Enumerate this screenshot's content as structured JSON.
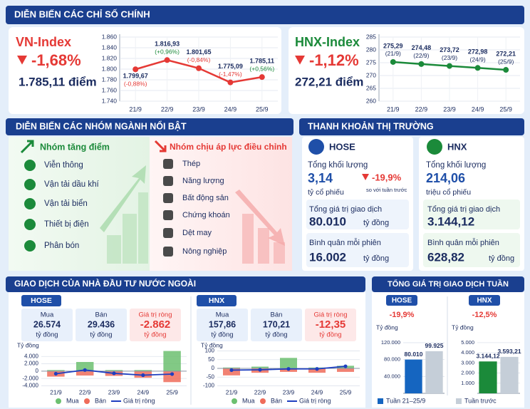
{
  "sections": {
    "indices": "DIỄN BIẾN CÁC CHỈ SỐ CHÍNH",
    "sectors": "DIỄN BIẾN CÁC NHÓM NGÀNH NỔI BẬT",
    "liquidity": "THANH KHOẢN THỊ TRƯỜNG",
    "foreign": "GIAO DỊCH CỦA NHÀ ĐẦU TƯ NƯỚC NGOÀI",
    "weekly": "TỔNG GIÁ TRỊ GIAO DỊCH TUẦN"
  },
  "indices": [
    {
      "name": "VN-Index",
      "change": "-1,68%",
      "close": "1.785,11 điểm"
    },
    {
      "name": "HNX-Index",
      "change": "-1,12%",
      "close": "272,21 điểm"
    }
  ],
  "sectors": {
    "up_title": "Nhóm tăng điểm",
    "up": [
      "Viễn thông",
      "Vận tải dầu khí",
      "Vận tải biển",
      "Thiết bị điện",
      "Phân bón"
    ],
    "down_title": "Nhóm chịu áp lực điều chỉnh",
    "down": [
      "Thép",
      "Năng lượng",
      "Bất động sản",
      "Chứng khoán",
      "Dệt may",
      "Nông nghiệp"
    ]
  },
  "liquidity": [
    {
      "exchange": "HOSE",
      "volume_label": "Tổng khối lượng",
      "volume": "3,14",
      "volume_unit": "tỷ cổ phiếu",
      "change": "-19,9%",
      "change_note": "so với tuần trước",
      "value_label": "Tổng giá trị giao dịch",
      "value": "80.010",
      "value_unit": "tỷ đồng",
      "avg_label": "Bình quân mỗi phiên",
      "avg": "16.002",
      "avg_unit": "tỷ đồng"
    },
    {
      "exchange": "HNX",
      "volume_label": "Tổng khối lượng",
      "volume": "214,06",
      "volume_unit": "triệu cổ phiếu",
      "value_label": "Tổng giá trị giao dịch",
      "value": "3.144,12",
      "avg_label": "Bình quân mỗi phiên",
      "avg": "628,82",
      "avg_unit": "tỷ đồng"
    }
  ],
  "foreign": [
    {
      "exchange": "HOSE",
      "boxes": [
        {
          "label": "Mua",
          "value": "26.574",
          "unit": "tỷ đồng"
        },
        {
          "label": "Bán",
          "value": "29.436",
          "unit": "tỷ đồng"
        },
        {
          "label": "Giá trị ròng",
          "value": "-2.862",
          "unit": "tỷ đồng"
        }
      ]
    },
    {
      "exchange": "HNX",
      "boxes": [
        {
          "label": "Mua",
          "value": "157,86",
          "unit": "tỷ đồng"
        },
        {
          "label": "Bán",
          "value": "170,21",
          "unit": "tỷ đồng"
        },
        {
          "label": "Giá trị ròng",
          "value": "-12,35",
          "unit": "tỷ đồng"
        }
      ]
    }
  ],
  "weekly": [
    {
      "exchange": "HOSE",
      "change": "-19,9%"
    },
    {
      "exchange": "HNX",
      "change": "-12,5%"
    }
  ],
  "chart_data": [
    {
      "type": "line",
      "categories": [
        "21/9",
        "22/9",
        "23/9",
        "24/9",
        "25/9"
      ],
      "values": [
        1799.67,
        1816.93,
        1801.65,
        1775.09,
        1785.11
      ],
      "value_labels": [
        "1.799,67",
        "1.816,93",
        "1.801,65",
        "1.775,09",
        "1.785,11"
      ],
      "annotations": [
        "(-0,88%)",
        "(+0,96%)",
        "(-0,84%)",
        "(-1,47%)",
        "(+0,56%)"
      ],
      "ylim": [
        1740,
        1860
      ],
      "yticks": [
        {
          "value": 1740,
          "label": "1.740"
        },
        {
          "value": 1760,
          "label": "1.760"
        },
        {
          "value": 1780,
          "label": "1.780"
        },
        {
          "value": 1800,
          "label": "1.800"
        },
        {
          "value": 1820,
          "label": "1.820"
        },
        {
          "value": 1840,
          "label": "1.840"
        },
        {
          "value": 1860,
          "label": "1.860"
        }
      ],
      "color": "#e53935",
      "grid": true
    },
    {
      "type": "line",
      "categories": [
        "21/9",
        "22/9",
        "23/9",
        "24/9",
        "25/9"
      ],
      "values": [
        275.29,
        274.48,
        273.72,
        272.98,
        272.21
      ],
      "value_labels": [
        "275,29",
        "274,48",
        "273,72",
        "272,98",
        "272,21"
      ],
      "annotations": [
        "(21/9)",
        "(22/9)",
        "(23/9)",
        "(24/9)",
        "(25/9)"
      ],
      "ylim": [
        260,
        285
      ],
      "yticks": [
        260,
        265,
        270,
        275,
        280,
        285
      ],
      "color": "#1b8a3a",
      "grid": true
    },
    {
      "type": "bar",
      "y_label": "Tỷ đồng",
      "categories": [
        "21/9",
        "22/9",
        "23/9",
        "24/9",
        "25/9"
      ],
      "ylim": [
        -4500,
        6000
      ],
      "yticks": [
        {
          "value": -4000,
          "label": "-4.000"
        },
        {
          "value": -2000,
          "label": "-2.000"
        },
        0,
        {
          "value": 2000,
          "label": "2.000"
        },
        {
          "value": 4000,
          "label": "4.000"
        }
      ],
      "series": [
        {
          "name": "Mua",
          "color": "#6cc070",
          "values": [
            300,
            2500,
            300,
            300,
            5500
          ]
        },
        {
          "name": "Bán",
          "color": "#ef6c5a",
          "values": [
            -1500,
            -1200,
            -1300,
            -1800,
            -3000
          ]
        },
        {
          "name": "Giá trị ròng",
          "color": "#1e3fc0",
          "kind": "line",
          "values": [
            -700,
            300,
            -600,
            -1100,
            -800
          ]
        }
      ],
      "legend": "bottom"
    },
    {
      "type": "bar",
      "y_label": "Tỷ đồng",
      "categories": [
        "21/9",
        "22/9",
        "23/9",
        "24/9",
        "25/9"
      ],
      "ylim": [
        -110,
        110
      ],
      "yticks": [
        -100,
        -50,
        0,
        50,
        100
      ],
      "series": [
        {
          "name": "Mua",
          "color": "#6cc070",
          "values": [
            5,
            10,
            60,
            5,
            15
          ]
        },
        {
          "name": "Bán",
          "color": "#ef6c5a",
          "values": [
            -40,
            -25,
            -20,
            -25,
            -20
          ]
        },
        {
          "name": "Giá trị ròng",
          "color": "#1e3fc0",
          "kind": "line",
          "values": [
            -10,
            -8,
            -3,
            -3,
            12
          ]
        }
      ],
      "legend": "bottom"
    },
    {
      "type": "bar",
      "y_label": "Tỷ đồng",
      "categories": [
        "Tuần 21–25/9",
        "Tuần trước"
      ],
      "values": [
        80010,
        99925
      ],
      "value_labels": [
        "80.010",
        "99.925"
      ],
      "colors": [
        "#1565c0",
        "#c5ced8"
      ],
      "ylim": [
        0,
        125000
      ],
      "yticks": [
        {
          "value": 40000,
          "label": "40.000"
        },
        {
          "value": 80000,
          "label": "80.000"
        },
        {
          "value": 120000,
          "label": "120.000"
        }
      ],
      "legend": "bottom"
    },
    {
      "type": "bar",
      "y_label": "Tỷ đồng",
      "values": [
        3144.12,
        3593.21
      ],
      "value_labels": [
        "3.144,12",
        "3.593,21"
      ],
      "colors": [
        "#1b8a3a",
        "#c5ced8"
      ],
      "ylim": [
        0,
        5200
      ],
      "yticks": [
        {
          "value": 1000,
          "label": "1.000"
        },
        {
          "value": 2000,
          "label": "2.000"
        },
        {
          "value": 3000,
          "label": "3.000"
        },
        {
          "value": 4000,
          "label": "4.000"
        },
        {
          "value": 5000,
          "label": "5.000"
        }
      ]
    }
  ]
}
